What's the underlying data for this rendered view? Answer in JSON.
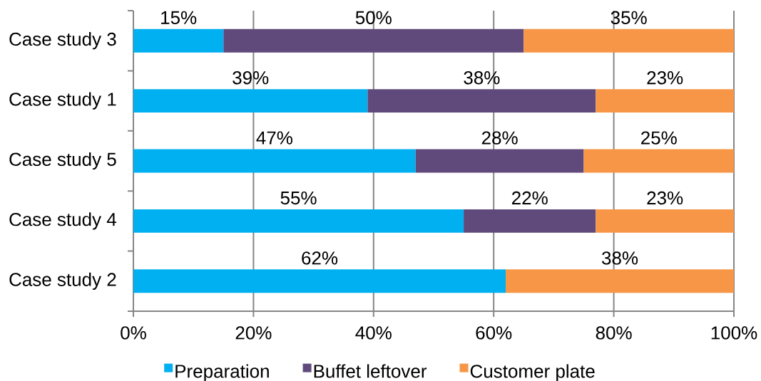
{
  "chart_data": {
    "type": "bar",
    "orientation": "horizontal",
    "stacked": true,
    "categories": [
      "Case study 3",
      "Case study 1",
      "Case study 5",
      "Case study 4",
      "Case study 2"
    ],
    "series": [
      {
        "name": "Preparation",
        "color": "#00b0f0",
        "values": [
          15,
          39,
          47,
          55,
          62
        ],
        "value_labels": [
          "15%",
          "39%",
          "47%",
          "55%",
          "62%"
        ]
      },
      {
        "name": "Buffet leftover",
        "color": "#604a7b",
        "values": [
          50,
          38,
          28,
          22,
          null
        ],
        "value_labels": [
          "50%",
          "38%",
          "28%",
          "22%",
          null
        ]
      },
      {
        "name": "Customer plate",
        "color": "#f79646",
        "values": [
          35,
          23,
          25,
          23,
          38
        ],
        "value_labels": [
          "35%",
          "23%",
          "25%",
          "23%",
          "38%"
        ]
      }
    ],
    "xlim": [
      0,
      100
    ],
    "xticks": [
      {
        "value": 0,
        "label": "0%"
      },
      {
        "value": 20,
        "label": "20%"
      },
      {
        "value": 40,
        "label": "40%"
      },
      {
        "value": 60,
        "label": "60%"
      },
      {
        "value": 80,
        "label": "80%"
      },
      {
        "value": 100,
        "label": "100%"
      }
    ],
    "grid": "x",
    "legend": "bottom"
  }
}
